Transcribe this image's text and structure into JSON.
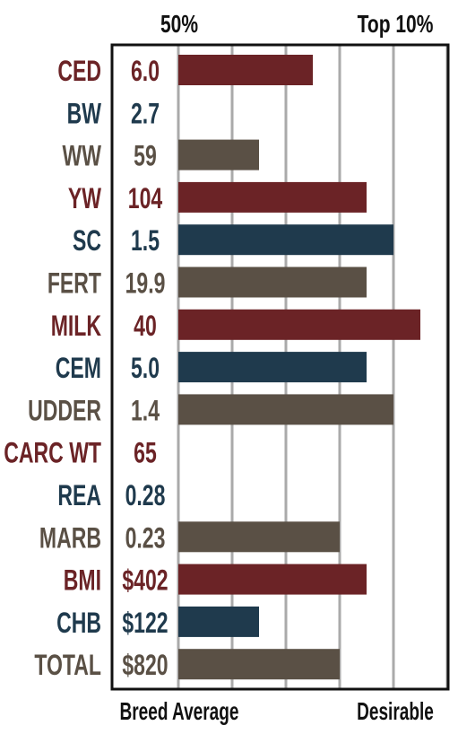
{
  "chart_data": {
    "type": "bar",
    "orientation": "horizontal",
    "top_labels": [
      "50%",
      "Top 10%"
    ],
    "bottom_labels": [
      "Breed Average",
      "Desirable"
    ],
    "grid": true,
    "xlim": [
      0,
      5
    ],
    "colors": {
      "red": "#6b2326",
      "blue": "#1f3a4d",
      "brown": "#5a5045",
      "grid": "#aaaaaa",
      "frame": "#111111"
    },
    "categories": [
      "CED",
      "BW",
      "WW",
      "YW",
      "SC",
      "FERT",
      "MILK",
      "CEM",
      "UDDER",
      "CARC WT",
      "REA",
      "MARB",
      "BMI",
      "CHB",
      "TOTAL"
    ],
    "epd_values": [
      "6.0",
      "2.7",
      "59",
      "104",
      "1.5",
      "19.9",
      "40",
      "5.0",
      "1.4",
      "65",
      "0.28",
      "0.23",
      "$402",
      "$122",
      "$820"
    ],
    "values": [
      2.5,
      0,
      1.5,
      3.5,
      4.0,
      3.5,
      4.5,
      3.5,
      4.0,
      0,
      0,
      3.0,
      3.5,
      1.5,
      3.0
    ],
    "label_colors": [
      "red",
      "blue",
      "brown",
      "red",
      "blue",
      "brown",
      "red",
      "blue",
      "brown",
      "red",
      "blue",
      "brown",
      "red",
      "blue",
      "brown"
    ]
  }
}
